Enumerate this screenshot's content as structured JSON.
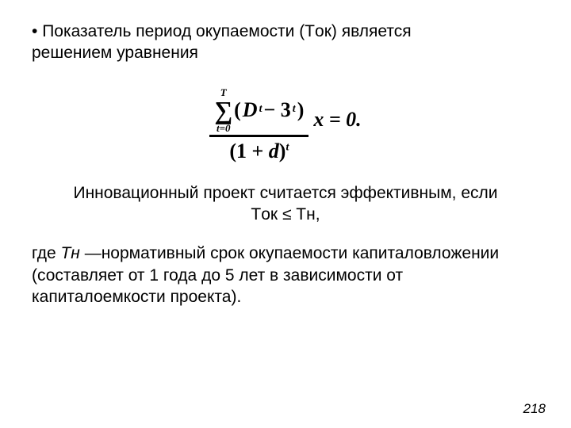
{
  "para1": {
    "bullet": "• ",
    "line1": "Показатель период окупаемости (Tок)  является",
    "line2": "решением уравнения"
  },
  "formula": {
    "sum_upper": "T",
    "sum_lower": "t=0",
    "num_open": "(",
    "num_D": "D",
    "num_sub_t1": "t",
    "num_minus": " − 3",
    "num_sub_t2": "t",
    "num_close": ")",
    "den_open": "(1 + ",
    "den_d": "d",
    "den_close": ")",
    "den_sup_t": "t",
    "tail": " x = 0."
  },
  "para2": {
    "line1": "Инновационный проект считается эффективным, если",
    "line2": "Tок ≤ Tн,"
  },
  "para3": {
    "text_a": "где ",
    "tn": "Tн",
    "text_b": " —нормативный срок окупаемости капиталовложении (составляет от 1 года до 5 лет в зависимости от капиталоемкости проекта)."
  },
  "pagenum": "218"
}
